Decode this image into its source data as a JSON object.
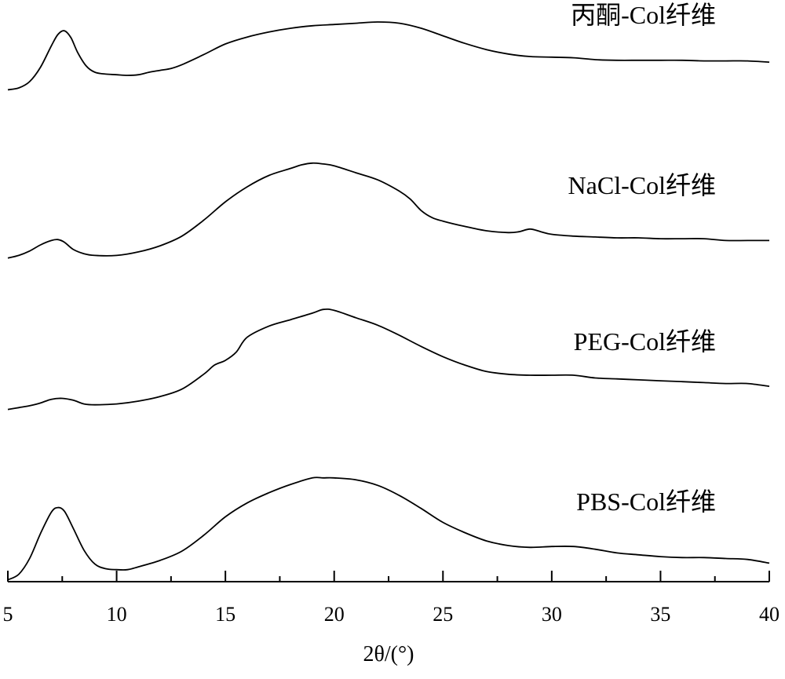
{
  "chart_data": {
    "type": "line",
    "title": "",
    "xlabel": "2θ/(°)",
    "ylabel": "",
    "xlim": [
      5,
      40
    ],
    "x_ticks": [
      "5",
      "10",
      "15",
      "20",
      "25",
      "30",
      "35",
      "40"
    ],
    "grid": false,
    "y_axis_shown": false,
    "series": [
      {
        "name": "丙酮-Col纤维",
        "x": [
          5,
          5.5,
          6,
          6.5,
          7,
          7.3,
          7.6,
          7.9,
          8.2,
          8.6,
          9,
          9.5,
          10,
          10.5,
          11,
          11.5,
          12,
          12.5,
          13,
          14,
          15,
          16,
          17,
          18,
          19,
          20,
          21,
          22,
          23,
          24,
          25,
          26,
          27,
          28,
          29,
          30,
          31,
          32,
          33,
          34,
          35,
          36,
          37,
          38,
          39,
          40
        ],
        "y": [
          0.02,
          0.05,
          0.15,
          0.38,
          0.72,
          0.9,
          0.96,
          0.85,
          0.62,
          0.4,
          0.3,
          0.27,
          0.26,
          0.25,
          0.26,
          0.3,
          0.33,
          0.36,
          0.42,
          0.58,
          0.75,
          0.86,
          0.94,
          1.0,
          1.04,
          1.06,
          1.08,
          1.1,
          1.08,
          1.0,
          0.88,
          0.76,
          0.66,
          0.59,
          0.55,
          0.54,
          0.53,
          0.5,
          0.49,
          0.49,
          0.49,
          0.49,
          0.48,
          0.48,
          0.48,
          0.46
        ]
      },
      {
        "name": "NaCl-Col纤维",
        "x": [
          5,
          5.5,
          6,
          6.5,
          7,
          7.3,
          7.6,
          8,
          8.5,
          9,
          10,
          11,
          12,
          13,
          14,
          15,
          16,
          17,
          18,
          18.5,
          19,
          19.5,
          20,
          21,
          22,
          23,
          23.5,
          24,
          24.5,
          25,
          26,
          27,
          28,
          28.5,
          29,
          29.5,
          30,
          31,
          32,
          33,
          34,
          35,
          36,
          37,
          38,
          39,
          40
        ],
        "y": [
          0.02,
          0.05,
          0.1,
          0.17,
          0.22,
          0.23,
          0.2,
          0.12,
          0.07,
          0.05,
          0.05,
          0.09,
          0.16,
          0.27,
          0.45,
          0.66,
          0.83,
          0.96,
          1.04,
          1.08,
          1.1,
          1.09,
          1.07,
          0.99,
          0.91,
          0.78,
          0.69,
          0.56,
          0.48,
          0.44,
          0.38,
          0.33,
          0.31,
          0.32,
          0.35,
          0.32,
          0.29,
          0.27,
          0.26,
          0.25,
          0.25,
          0.24,
          0.24,
          0.24,
          0.22,
          0.22,
          0.22
        ]
      },
      {
        "name": "PEG-Col纤维",
        "x": [
          5,
          5.5,
          6,
          6.5,
          7,
          7.5,
          8,
          8.5,
          9,
          10,
          11,
          12,
          13,
          14,
          14.5,
          15,
          15.5,
          16,
          17,
          18,
          19,
          19.5,
          20,
          21,
          22,
          23,
          24,
          25,
          26,
          27,
          28,
          29,
          30,
          31,
          32,
          33,
          34,
          35,
          36,
          37,
          38,
          39,
          40
        ],
        "y": [
          0.02,
          0.04,
          0.06,
          0.09,
          0.13,
          0.14,
          0.12,
          0.08,
          0.07,
          0.08,
          0.11,
          0.16,
          0.24,
          0.4,
          0.5,
          0.55,
          0.64,
          0.8,
          0.92,
          0.99,
          1.06,
          1.1,
          1.09,
          1.01,
          0.93,
          0.82,
          0.7,
          0.59,
          0.5,
          0.43,
          0.4,
          0.39,
          0.39,
          0.39,
          0.36,
          0.35,
          0.34,
          0.33,
          0.32,
          0.31,
          0.3,
          0.3,
          0.27
        ]
      },
      {
        "name": "PBS-Col纤维",
        "x": [
          5,
          5.5,
          6,
          6.5,
          7,
          7.3,
          7.6,
          8,
          8.5,
          9,
          9.5,
          10,
          10.5,
          11,
          12,
          13,
          14,
          15,
          16,
          17,
          18,
          19,
          19.5,
          20,
          21,
          22,
          23,
          24,
          25,
          26,
          27,
          28,
          29,
          30,
          31,
          32,
          33,
          34,
          35,
          36,
          37,
          38,
          39,
          40
        ],
        "y": [
          0.02,
          0.08,
          0.25,
          0.52,
          0.75,
          0.8,
          0.76,
          0.58,
          0.34,
          0.19,
          0.14,
          0.13,
          0.13,
          0.16,
          0.23,
          0.33,
          0.5,
          0.7,
          0.85,
          0.96,
          1.05,
          1.12,
          1.12,
          1.12,
          1.1,
          1.04,
          0.93,
          0.79,
          0.64,
          0.53,
          0.44,
          0.39,
          0.37,
          0.38,
          0.38,
          0.35,
          0.31,
          0.29,
          0.27,
          0.26,
          0.26,
          0.25,
          0.24,
          0.2
        ]
      }
    ]
  }
}
